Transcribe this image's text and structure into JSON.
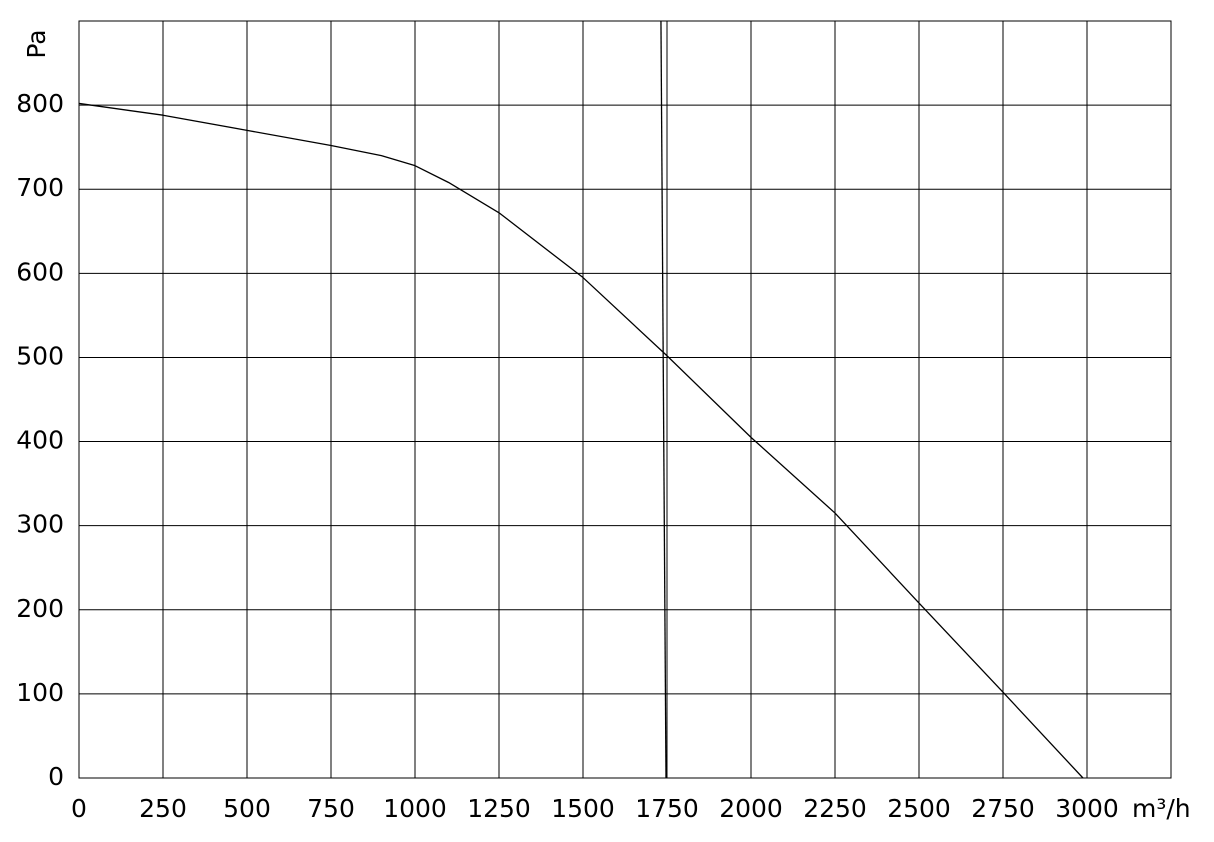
{
  "chart_data": {
    "type": "line",
    "y_label": "Pa",
    "x_label": "m³/h",
    "series": [
      {
        "color": "#000000",
        "x": [
          0,
          250,
          500,
          750,
          900,
          1000,
          1100,
          1250,
          1500,
          1750,
          2000,
          2250,
          2500,
          2750,
          2988
        ],
        "values": [
          802,
          788,
          770,
          752,
          740,
          728,
          708,
          672,
          595,
          502,
          405,
          315,
          208,
          102,
          0
        ]
      },
      {
        "color": "#000000",
        "x": [
          1732,
          1747
        ],
        "values": [
          900,
          0
        ]
      }
    ],
    "xlim": [
      0,
      3250
    ],
    "ylim": [
      0,
      900
    ],
    "xticks": [
      0,
      250,
      500,
      750,
      1000,
      1250,
      1500,
      1750,
      2000,
      2250,
      2500,
      2750,
      3000
    ],
    "yticks": [
      0,
      100,
      200,
      300,
      400,
      500,
      600,
      700,
      800
    ],
    "grid": true
  }
}
